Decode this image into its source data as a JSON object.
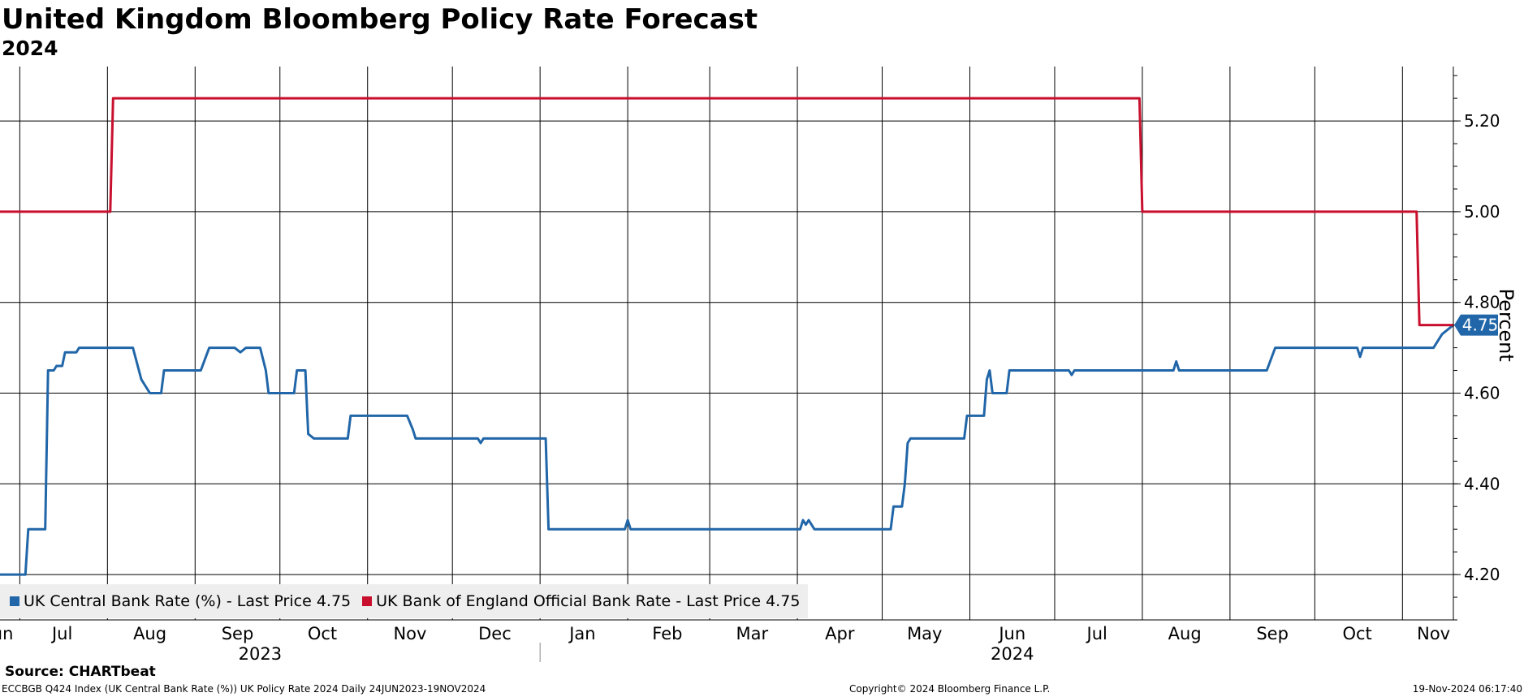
{
  "header": {
    "title": "United Kingdom Bloomberg Policy Rate Forecast",
    "subtitle": "2024"
  },
  "chart_data": {
    "type": "line",
    "x_range": [
      "2023-06-24",
      "2024-11-19"
    ],
    "ylim": [
      4.1,
      5.32
    ],
    "yticks": [
      "4.20",
      "4.40",
      "4.60",
      "4.80",
      "5.00",
      "5.20"
    ],
    "ylabel": "Percent",
    "grid": true,
    "legend_position": "bottom-left",
    "month_labels": [
      {
        "label": "Jun",
        "date": "2023-06-24"
      },
      {
        "label": "Jul",
        "date": "2023-07-16"
      },
      {
        "label": "Aug",
        "date": "2023-08-16"
      },
      {
        "label": "Sep",
        "date": "2023-09-16"
      },
      {
        "label": "Oct",
        "date": "2023-10-16"
      },
      {
        "label": "Nov",
        "date": "2023-11-16"
      },
      {
        "label": "Dec",
        "date": "2023-12-16"
      },
      {
        "label": "Jan",
        "date": "2024-01-16"
      },
      {
        "label": "Feb",
        "date": "2024-02-15"
      },
      {
        "label": "Mar",
        "date": "2024-03-16"
      },
      {
        "label": "Apr",
        "date": "2024-04-16"
      },
      {
        "label": "May",
        "date": "2024-05-16"
      },
      {
        "label": "Jun",
        "date": "2024-06-16"
      },
      {
        "label": "Jul",
        "date": "2024-07-16"
      },
      {
        "label": "Aug",
        "date": "2024-08-16"
      },
      {
        "label": "Sep",
        "date": "2024-09-16"
      },
      {
        "label": "Oct",
        "date": "2024-10-16"
      },
      {
        "label": "Nov",
        "date": "2024-11-12"
      }
    ],
    "month_gridlines": [
      "2023-07-01",
      "2023-08-01",
      "2023-09-01",
      "2023-10-01",
      "2023-11-01",
      "2023-12-01",
      "2024-01-01",
      "2024-02-01",
      "2024-03-01",
      "2024-04-01",
      "2024-05-01",
      "2024-06-01",
      "2024-07-01",
      "2024-08-01",
      "2024-09-01",
      "2024-10-01",
      "2024-11-01"
    ],
    "year_labels": [
      {
        "label": "2023",
        "date": "2023-09-24"
      },
      {
        "label": "2024",
        "date": "2024-06-16"
      }
    ],
    "year_separator": "2024-01-01",
    "series": [
      {
        "name": "UK Central Bank Rate (%)",
        "legend_label": "UK Central Bank Rate (%) - Last Price 4.75",
        "color": "#2166a8",
        "last_value": "4.75",
        "x": [
          "2023-06-24",
          "2023-07-03",
          "2023-07-04",
          "2023-07-10",
          "2023-07-11",
          "2023-07-13",
          "2023-07-14",
          "2023-07-16",
          "2023-07-17",
          "2023-07-21",
          "2023-07-22",
          "2023-08-10",
          "2023-08-13",
          "2023-08-16",
          "2023-08-17",
          "2023-08-20",
          "2023-08-21",
          "2023-09-03",
          "2023-09-06",
          "2023-09-15",
          "2023-09-17",
          "2023-09-19",
          "2023-09-24",
          "2023-09-26",
          "2023-09-27",
          "2023-10-04",
          "2023-10-06",
          "2023-10-07",
          "2023-10-09",
          "2023-10-10",
          "2023-10-11",
          "2023-10-13",
          "2023-10-25",
          "2023-10-26",
          "2023-11-15",
          "2023-11-17",
          "2023-11-18",
          "2023-12-10",
          "2023-12-11",
          "2023-12-12",
          "2024-01-03",
          "2024-01-04",
          "2024-01-31",
          "2024-02-01",
          "2024-02-02",
          "2024-04-02",
          "2024-04-03",
          "2024-04-04",
          "2024-04-05",
          "2024-04-07",
          "2024-04-09",
          "2024-05-04",
          "2024-05-05",
          "2024-05-08",
          "2024-05-09",
          "2024-05-10",
          "2024-05-11",
          "2024-05-30",
          "2024-05-31",
          "2024-06-06",
          "2024-06-07",
          "2024-06-08",
          "2024-06-09",
          "2024-06-10",
          "2024-06-14",
          "2024-06-15",
          "2024-07-06",
          "2024-07-07",
          "2024-07-08",
          "2024-08-12",
          "2024-08-13",
          "2024-08-14",
          "2024-09-14",
          "2024-09-17",
          "2024-10-16",
          "2024-10-17",
          "2024-10-18",
          "2024-11-12",
          "2024-11-15",
          "2024-11-19"
        ],
        "y": [
          4.2,
          4.2,
          4.3,
          4.3,
          4.65,
          4.65,
          4.66,
          4.66,
          4.69,
          4.69,
          4.7,
          4.7,
          4.63,
          4.6,
          4.6,
          4.6,
          4.65,
          4.65,
          4.7,
          4.7,
          4.69,
          4.7,
          4.7,
          4.65,
          4.6,
          4.6,
          4.6,
          4.65,
          4.65,
          4.65,
          4.51,
          4.5,
          4.5,
          4.55,
          4.55,
          4.52,
          4.5,
          4.5,
          4.49,
          4.5,
          4.5,
          4.3,
          4.3,
          4.32,
          4.3,
          4.3,
          4.32,
          4.31,
          4.32,
          4.3,
          4.3,
          4.3,
          4.35,
          4.35,
          4.4,
          4.49,
          4.5,
          4.5,
          4.55,
          4.55,
          4.63,
          4.65,
          4.6,
          4.6,
          4.6,
          4.65,
          4.65,
          4.64,
          4.65,
          4.65,
          4.67,
          4.65,
          4.65,
          4.7,
          4.7,
          4.68,
          4.7,
          4.7,
          4.73,
          4.75
        ]
      },
      {
        "name": "UK Bank of England Official Bank Rate",
        "legend_label": "UK Bank of England Official Bank Rate - Last Price 4.75",
        "color": "#c8102e",
        "last_value": "4.75",
        "x": [
          "2023-06-24",
          "2023-08-02",
          "2023-08-03",
          "2024-07-31",
          "2024-08-01",
          "2024-11-06",
          "2024-11-07",
          "2024-11-19"
        ],
        "y": [
          5.0,
          5.0,
          5.25,
          5.25,
          5.0,
          5.0,
          4.75,
          4.75
        ]
      }
    ]
  },
  "legend": {
    "items": [
      {
        "label": "UK Central Bank Rate (%) - Last Price 4.75",
        "color": "#2166a8"
      },
      {
        "label": "UK Bank of England Official Bank Rate - Last Price 4.75",
        "color": "#c8102e"
      }
    ]
  },
  "source": "Source: CHARTbeat",
  "footer": {
    "left": "ECCBGB Q424 Index (UK Central Bank Rate (%)) UK Policy Rate 2024  Daily 24JUN2023-19NOV2024",
    "center": "Copyright© 2024 Bloomberg Finance L.P.",
    "right": "19-Nov-2024 06:17:40"
  }
}
